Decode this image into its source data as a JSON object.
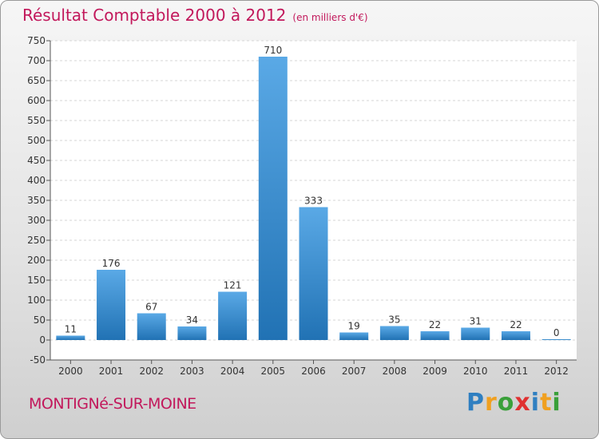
{
  "header": {
    "title": "Résultat Comptable 2000 à 2012",
    "subtitle": "(en milliers d'€)"
  },
  "footer": {
    "commune": "MONTIGNé-SUR-MOINE",
    "logo": "Proxiti"
  },
  "colors": {
    "title": "#c2185b",
    "bar_light": "#5aa9e6",
    "bar_dark": "#2172b4",
    "logo_letters": [
      "#2f7fc1",
      "#f0a020",
      "#3aa03a",
      "#e03030",
      "#2f7fc1",
      "#f0a020",
      "#3aa03a"
    ]
  },
  "chart_data": {
    "type": "bar",
    "categories": [
      "2000",
      "2001",
      "2002",
      "2003",
      "2004",
      "2005",
      "2006",
      "2007",
      "2008",
      "2009",
      "2010",
      "2011",
      "2012"
    ],
    "values": [
      11,
      176,
      67,
      34,
      121,
      710,
      333,
      19,
      35,
      22,
      31,
      22,
      0
    ],
    "data_labels": [
      "11",
      "176",
      "67",
      "34",
      "121",
      "710",
      "333",
      "19",
      "35",
      "22",
      "31",
      "22",
      "0"
    ],
    "ylim": [
      -50,
      750
    ],
    "yticks": [
      -50,
      0,
      50,
      100,
      150,
      200,
      250,
      300,
      350,
      400,
      450,
      500,
      550,
      600,
      650,
      700,
      750
    ],
    "grid": "horizontal-dashed",
    "legend": "none"
  }
}
